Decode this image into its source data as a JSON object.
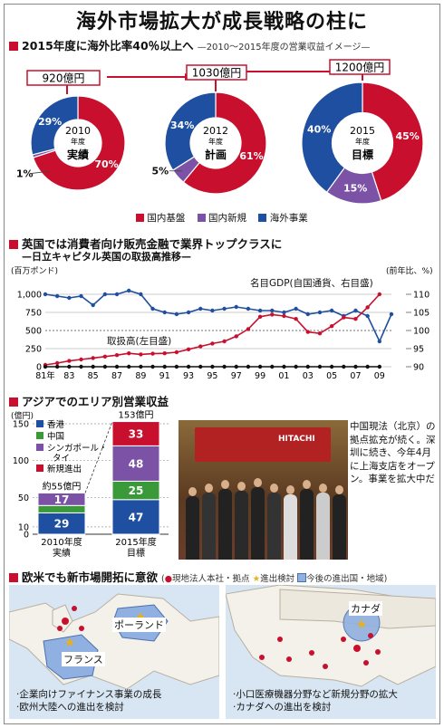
{
  "page_title": "海外市場拡大が成長戦略の柱に",
  "sec1": {
    "heading": "2015年度に海外比率40％以上へ",
    "subheading": "—2010～2015年度の営業収益イメージ—",
    "totals": [
      "920億円",
      "1030億円",
      "1200億円"
    ],
    "legend": [
      "国内基盤",
      "国内新規",
      "海外事業"
    ]
  },
  "sec2": {
    "heading": "英国では消費者向け販売金融で業界トップクラスに",
    "subheading": "—日立キャピタル英国の取扱高推移—",
    "left_unit": "(百万ポンド)",
    "right_unit": "(前年比、%)",
    "label_gdp": "名目GDP(自国通貨、右目盛)",
    "label_volume": "取扱高(左目盛)"
  },
  "sec3": {
    "heading": "アジアでのエリア別営業収益",
    "unit": "(億円)",
    "total_2015": "153億円",
    "approx_2010": "約55億円",
    "note": "中国現法（北京）の拠点拡充が続く。深圳に続き、今年4月に上海支店をオープン。事業を拡大中だ",
    "photo_logo": "HITACHI"
  },
  "sec4": {
    "heading": "欧米でも新市場開拓に意欲",
    "legend_a": "現地法人本社・拠点",
    "legend_b": "進出検討",
    "legend_c": "今後の進出国・地域",
    "europe_labels": [
      "ポーランド",
      "フランス"
    ],
    "europe_caption": [
      "·企業向けファイナンス事業の成長",
      "·欧州大陸への進出を検討"
    ],
    "america_label": "カナダ",
    "america_caption": [
      "·小口医療機器分野など新規分野の拡大",
      "·カナダへの進出を検討"
    ]
  },
  "colors": {
    "domestic_base": "#c8102e",
    "domestic_new": "#7b52a6",
    "overseas": "#1f4fa0",
    "hk": "#1f4fa0",
    "china": "#3a9a3a",
    "sg": "#7b52a6",
    "new_entry": "#c8102e"
  },
  "chart_data": [
    {
      "type": "pie",
      "title": "2015年度に海外比率40％以上へ",
      "categories": [
        "国内基盤",
        "国内新規",
        "海外事業"
      ],
      "pies": [
        {
          "year": "2010",
          "sub": "年度",
          "label": "実績",
          "total": "920億円",
          "values": [
            70,
            1,
            29
          ]
        },
        {
          "year": "2012",
          "sub": "年度",
          "label": "計画",
          "total": "1030億円",
          "values": [
            61,
            5,
            34
          ]
        },
        {
          "year": "2015",
          "sub": "年度",
          "label": "目標",
          "total": "1200億円",
          "values": [
            45,
            15,
            40
          ]
        }
      ]
    },
    {
      "type": "line",
      "title": "日立キャピタル英国の取扱高推移",
      "x_ticks": [
        "81年",
        "83",
        "85",
        "87",
        "89",
        "91",
        "93",
        "95",
        "97",
        "99",
        "01",
        "03",
        "05",
        "07",
        "09"
      ],
      "left_ticks": [
        "1,000",
        "750",
        "500",
        "250",
        "0"
      ],
      "right_ticks": [
        "110",
        "105",
        "100",
        "95",
        "90"
      ],
      "ylim_left": [
        0,
        1000
      ],
      "ylim_right": [
        90,
        110
      ],
      "series": [
        {
          "name": "名目GDP(自国通貨、右目盛)",
          "axis": "right",
          "x": [
            1981,
            1982,
            1983,
            1984,
            1985,
            1986,
            1987,
            1988,
            1989,
            1990,
            1991,
            1992,
            1993,
            1994,
            1995,
            1996,
            1997,
            1998,
            1999,
            2000,
            2001,
            2002,
            2003,
            2004,
            2005,
            2006,
            2007,
            2008,
            2009,
            2010
          ],
          "y": [
            110,
            109.5,
            109,
            109.5,
            107,
            110,
            110,
            111,
            110,
            106,
            105,
            104.5,
            105,
            106,
            105.5,
            106,
            106.5,
            106,
            105.5,
            105.5,
            105,
            106,
            104.5,
            105,
            105.5,
            104,
            105.5,
            104,
            97,
            104.5
          ]
        },
        {
          "name": "取扱高(左目盛)",
          "axis": "left",
          "x": [
            1981,
            1982,
            1983,
            1984,
            1985,
            1986,
            1987,
            1988,
            1989,
            1990,
            1991,
            1992,
            1993,
            1994,
            1995,
            1996,
            1997,
            1998,
            1999,
            2000,
            2001,
            2002,
            2003,
            2004,
            2005,
            2006,
            2007,
            2008,
            2009
          ],
          "y": [
            25,
            50,
            80,
            100,
            120,
            140,
            160,
            185,
            170,
            180,
            185,
            200,
            240,
            280,
            320,
            350,
            420,
            520,
            690,
            720,
            700,
            660,
            480,
            460,
            560,
            680,
            660,
            820,
            1000
          ]
        },
        {
          "name": "",
          "axis": "left",
          "x": [
            1981,
            1982,
            1983,
            1984,
            1985,
            1986,
            1987,
            1988,
            1989,
            1990,
            1991,
            1992,
            1993,
            1994,
            1995,
            1996,
            1997,
            1998,
            1999,
            2000,
            2001,
            2002,
            2003,
            2004,
            2005,
            2006,
            2007,
            2008,
            2009
          ],
          "y": [
            0,
            0,
            0,
            0,
            0,
            0,
            0,
            0,
            0,
            0,
            0,
            0,
            0,
            0,
            0,
            0,
            0,
            0,
            0,
            0,
            0,
            0,
            0,
            0,
            0,
            0,
            0,
            0,
            0
          ]
        }
      ]
    },
    {
      "type": "bar",
      "title": "アジアでのエリア別営業収益",
      "categories": [
        "2010年度\n実績",
        "2015年度\n目標"
      ],
      "y_ticks": [
        "150",
        "100",
        "50",
        "10",
        "0"
      ],
      "ylim": [
        0,
        160
      ],
      "series": [
        {
          "name": "香港",
          "values": [
            29,
            47
          ]
        },
        {
          "name": "中国",
          "values": [
            10,
            25
          ]
        },
        {
          "name": "シンガポール・タイ",
          "values": [
            17,
            48
          ]
        },
        {
          "name": "新規進出",
          "values": [
            0,
            33
          ]
        }
      ],
      "totals": [
        "約55億円",
        "153億円"
      ]
    }
  ]
}
